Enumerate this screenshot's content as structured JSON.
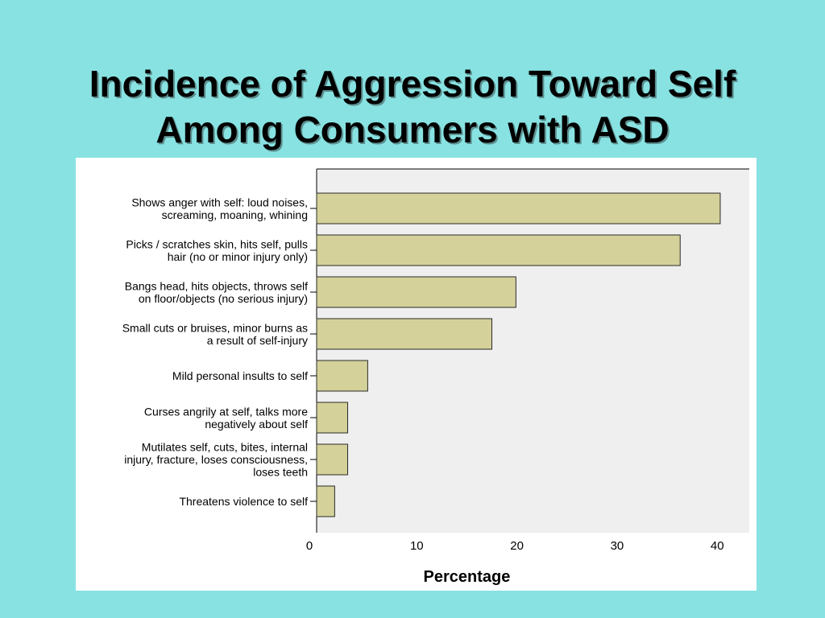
{
  "slide": {
    "title_lines": [
      "Incidence of Aggression Toward Self",
      "Among Consumers with ASD"
    ]
  },
  "chart_data": {
    "type": "bar",
    "orientation": "horizontal",
    "categories": [
      [
        "Shows anger with self: loud noises,",
        "screaming, moaning, whining"
      ],
      [
        "Picks / scratches skin, hits self, pulls",
        "hair (no or minor injury only)"
      ],
      [
        "Bangs head, hits objects, throws self",
        "on floor/objects (no serious injury)"
      ],
      [
        "Small cuts or bruises, minor burns as",
        "a result of self-injury"
      ],
      [
        "Mild personal insults to self"
      ],
      [
        "Curses angrily at self, talks more",
        "negatively about self"
      ],
      [
        "Mutilates self, cuts, bites, internal",
        "injury, fracture, loses consciousness,",
        "loses teeth"
      ],
      [
        "Threatens violence to self"
      ]
    ],
    "values": [
      40.3,
      36.3,
      19.9,
      17.5,
      5.1,
      3.1,
      3.1,
      1.8
    ],
    "xlabel": "Percentage",
    "ylabel": "",
    "xlim": [
      0,
      43.2
    ],
    "xticks": [
      0,
      10,
      20,
      30,
      40
    ],
    "grid": false,
    "colors": {
      "bar_fill": "#d4d19a",
      "bar_stroke": "#2a2a2a",
      "plot_bg": "#efefef",
      "panel_bg": "#ffffff"
    }
  }
}
